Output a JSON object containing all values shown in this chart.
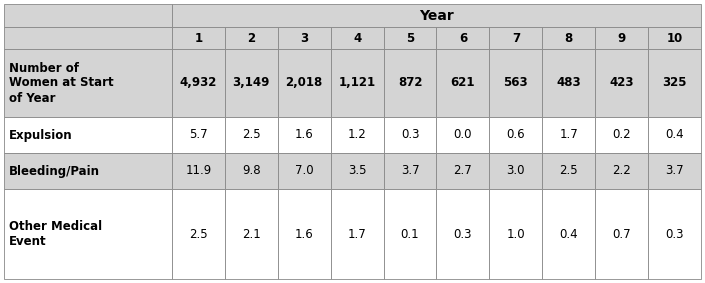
{
  "title": "Year",
  "col_headers": [
    "1",
    "2",
    "3",
    "4",
    "5",
    "6",
    "7",
    "8",
    "9",
    "10"
  ],
  "row_labels": [
    "Number of\nWomen at Start\nof Year",
    "Expulsion",
    "Bleeding/Pain",
    "Other Medical\nEvent"
  ],
  "table_data": [
    [
      "4,932",
      "3,149",
      "2,018",
      "1,121",
      "872",
      "621",
      "563",
      "483",
      "423",
      "325"
    ],
    [
      "5.7",
      "2.5",
      "1.6",
      "1.2",
      "0.3",
      "0.0",
      "0.6",
      "1.7",
      "0.2",
      "0.4"
    ],
    [
      "11.9",
      "9.8",
      "7.0",
      "3.5",
      "3.7",
      "2.7",
      "3.0",
      "2.5",
      "2.2",
      "3.7"
    ],
    [
      "2.5",
      "2.1",
      "1.6",
      "1.7",
      "0.1",
      "0.3",
      "1.0",
      "0.4",
      "0.7",
      "0.3"
    ]
  ],
  "header_bg": "#d4d4d4",
  "data_bg_white": "#ffffff",
  "data_bg_gray": "#d4d4d4",
  "border_color": "#888888",
  "text_color": "#000000",
  "font_size": 8.5,
  "header_font_size": 10.0,
  "num_font_size": 8.5,
  "fig_width": 7.05,
  "fig_height": 2.83,
  "dpi": 100
}
